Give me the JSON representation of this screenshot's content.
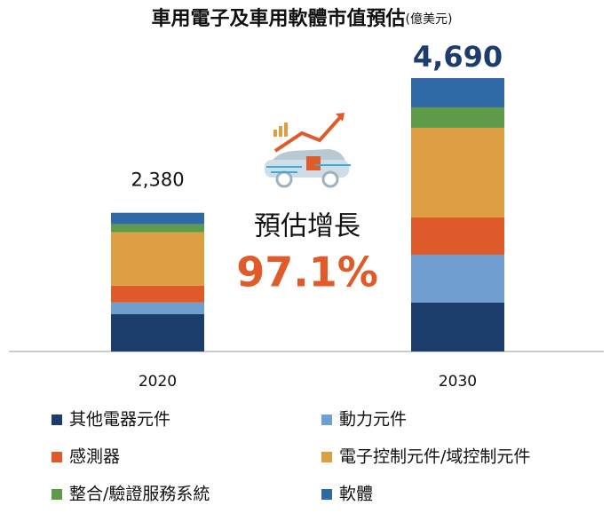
{
  "chart_data": {
    "type": "stacked_bar",
    "title": "車用電子及車用軟體市值預估",
    "unit": "(億美元)",
    "categories": [
      "2020",
      "2030"
    ],
    "series": [
      {
        "name": "其他電器元件",
        "color": "#1c3c6c",
        "values": [
          640,
          838
        ]
      },
      {
        "name": "動力元件",
        "color": "#6f9ed0",
        "values": [
          200,
          822
        ]
      },
      {
        "name": "感測器",
        "color": "#df5a2a",
        "values": [
          290,
          640
        ]
      },
      {
        "name": "電子控制元件/域控制元件",
        "color": "#dca042",
        "values": [
          915,
          1538
        ]
      },
      {
        "name": "整合/驗證服務系統",
        "color": "#5e9a48",
        "values": [
          137,
          350
        ]
      },
      {
        "name": "軟體",
        "color": "#2f69a6",
        "values": [
          198,
          502
        ]
      }
    ],
    "totals": [
      2380,
      4690
    ],
    "total_labels": [
      "2,380",
      "4,690"
    ],
    "growth_label": "預估增長",
    "growth_value": "97.1%"
  }
}
